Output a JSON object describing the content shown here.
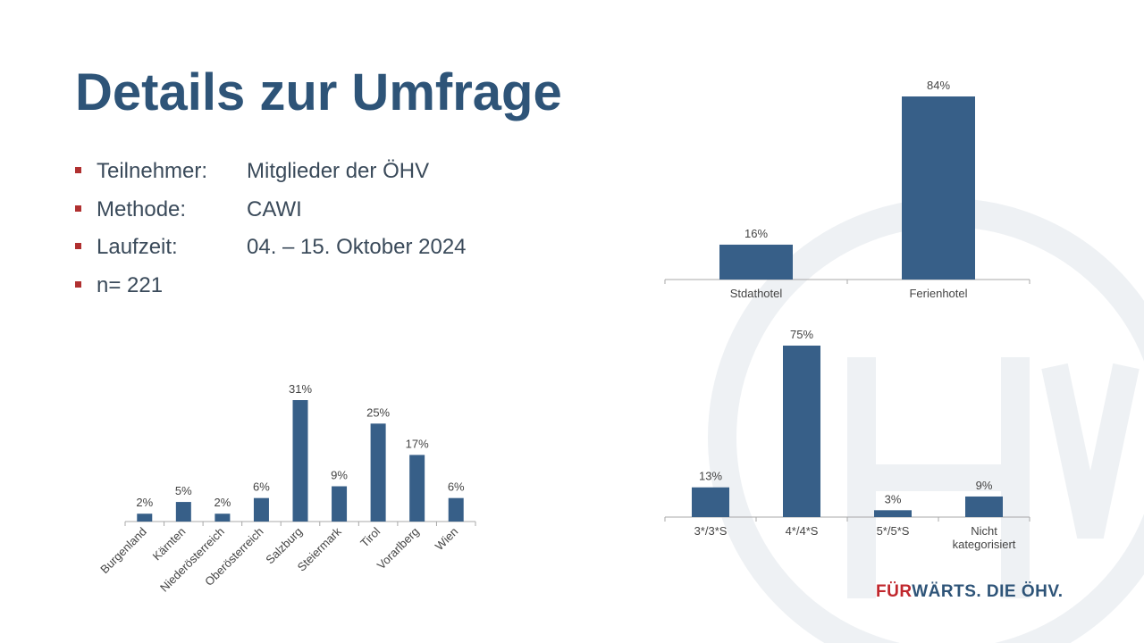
{
  "slide": {
    "title": "Details zur Umfrage",
    "bullets": [
      {
        "label": "Teilnehmer:",
        "value": "Mitglieder der ÖHV"
      },
      {
        "label": "Methode:",
        "value": "CAWI"
      },
      {
        "label": "Laufzeit:",
        "value": "04. – 15. Oktober 2024"
      },
      {
        "label": "n= 221",
        "value": ""
      }
    ],
    "footer": {
      "part1": "FÜR",
      "part2": "WÄRTS. DIE ÖHV."
    },
    "colors": {
      "title": "#2e5478",
      "bar": "#375f88",
      "bullet": "#b03030",
      "footer_red": "#c0272d"
    }
  },
  "chart_data": [
    {
      "type": "bar",
      "categories": [
        "Stdathotel",
        "Ferienhotel"
      ],
      "values": [
        16,
        84
      ],
      "value_labels": [
        "16%",
        "84%"
      ],
      "title": "",
      "xlabel": "",
      "ylabel": "",
      "ylim": [
        0,
        84
      ],
      "grid": false
    },
    {
      "type": "bar",
      "categories": [
        "3*/3*S",
        "4*/4*S",
        "5*/5*S",
        "Nicht\nkategorisiert"
      ],
      "values": [
        13,
        75,
        3,
        9
      ],
      "value_labels": [
        "13%",
        "75%",
        "3%",
        "9%"
      ],
      "title": "",
      "xlabel": "",
      "ylabel": "",
      "ylim": [
        0,
        75
      ],
      "grid": false
    },
    {
      "type": "bar",
      "categories": [
        "Burgenland",
        "Kärnten",
        "Niederösterreich",
        "Oberösterreich",
        "Salzburg",
        "Steiermark",
        "Tirol",
        "Vorarlberg",
        "Wien"
      ],
      "values": [
        2,
        5,
        2,
        6,
        31,
        9,
        25,
        17,
        6
      ],
      "value_labels": [
        "2%",
        "5%",
        "2%",
        "6%",
        "31%",
        "9%",
        "25%",
        "17%",
        "6%"
      ],
      "title": "",
      "xlabel": "",
      "ylabel": "",
      "ylim": [
        0,
        31
      ],
      "grid": false
    }
  ]
}
